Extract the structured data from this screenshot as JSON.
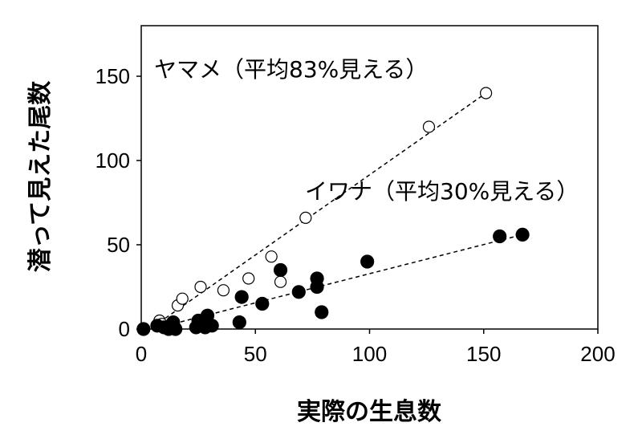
{
  "chart_data": {
    "type": "scatter",
    "title": "",
    "xlabel": "実際の生息数",
    "ylabel": "潜って見えた尾数",
    "xlim": [
      0,
      200
    ],
    "ylim": [
      0,
      180
    ],
    "xticks": [
      0,
      50,
      100,
      150,
      200
    ],
    "yticks": [
      0,
      50,
      100,
      150
    ],
    "grid": false,
    "legend": "none",
    "series": [
      {
        "marker": "open-circle",
        "annotation": "ヤマメ（平均83%見える）",
        "trendline": {
          "x": [
            8,
            151
          ],
          "y": [
            4,
            140
          ]
        },
        "points": [
          {
            "x": 8,
            "y": 5
          },
          {
            "x": 9,
            "y": 3
          },
          {
            "x": 16,
            "y": 14
          },
          {
            "x": 18,
            "y": 18
          },
          {
            "x": 26,
            "y": 25
          },
          {
            "x": 36,
            "y": 23
          },
          {
            "x": 47,
            "y": 30
          },
          {
            "x": 57,
            "y": 43
          },
          {
            "x": 61,
            "y": 28
          },
          {
            "x": 72,
            "y": 66
          },
          {
            "x": 126,
            "y": 120
          },
          {
            "x": 151,
            "y": 140
          }
        ]
      },
      {
        "marker": "filled-circle",
        "annotation": "イワナ（平均30%見える）",
        "trendline": {
          "x": [
            5,
            167
          ],
          "y": [
            0,
            56
          ]
        },
        "points": [
          {
            "x": 1,
            "y": 0
          },
          {
            "x": 7,
            "y": 2
          },
          {
            "x": 10,
            "y": 1
          },
          {
            "x": 12,
            "y": 0
          },
          {
            "x": 14,
            "y": 4
          },
          {
            "x": 15,
            "y": 0
          },
          {
            "x": 24,
            "y": 1
          },
          {
            "x": 25,
            "y": 5
          },
          {
            "x": 28,
            "y": 1
          },
          {
            "x": 29,
            "y": 8
          },
          {
            "x": 31,
            "y": 2
          },
          {
            "x": 43,
            "y": 4
          },
          {
            "x": 44,
            "y": 19
          },
          {
            "x": 53,
            "y": 15
          },
          {
            "x": 61,
            "y": 35
          },
          {
            "x": 69,
            "y": 22
          },
          {
            "x": 77,
            "y": 25
          },
          {
            "x": 77,
            "y": 30
          },
          {
            "x": 79,
            "y": 10
          },
          {
            "x": 99,
            "y": 40
          },
          {
            "x": 157,
            "y": 55
          },
          {
            "x": 167,
            "y": 56
          }
        ]
      }
    ]
  }
}
